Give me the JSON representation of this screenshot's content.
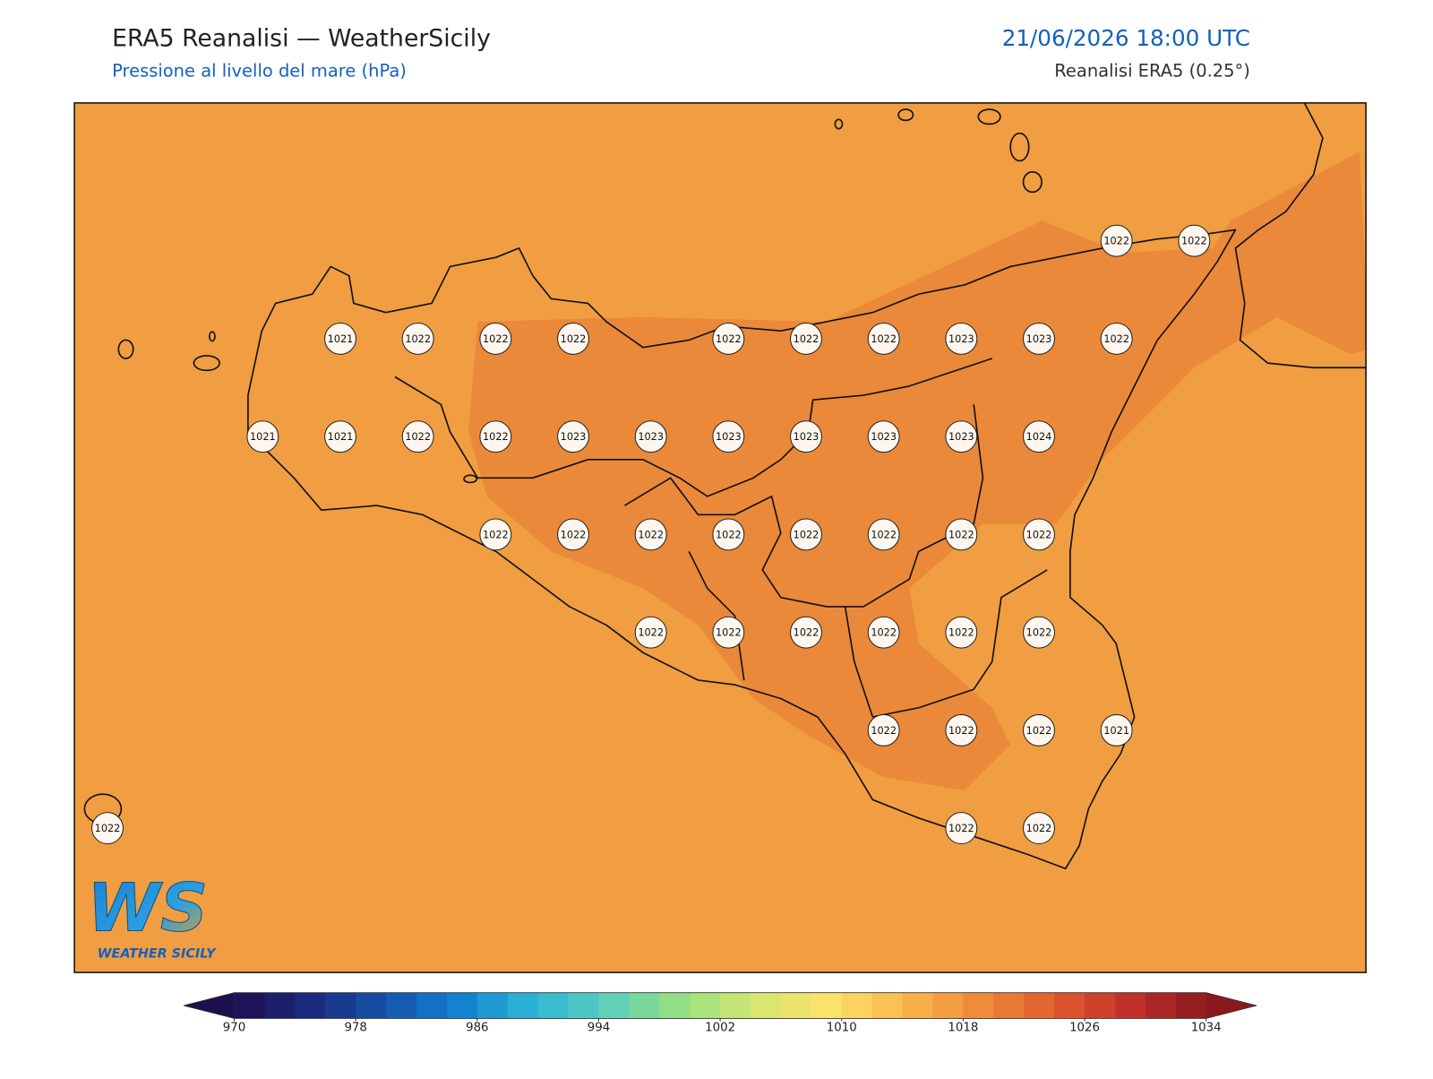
{
  "header": {
    "title": "ERA5 Reanalisi — WeatherSicily",
    "subtitle": "Pressione al livello del mare (hPa)",
    "datetime": "21/06/2026 18:00 UTC",
    "source": "Reanalisi ERA5 (0.25°)"
  },
  "map": {
    "pressure_grid": [
      [
        null,
        null,
        null,
        null,
        null,
        null,
        null,
        null,
        null,
        null,
        null,
        null,
        null,
        1022,
        1022
      ],
      [
        null,
        null,
        null,
        1021,
        1022,
        1022,
        1022,
        null,
        1022,
        1022,
        1022,
        1023,
        1023,
        1022,
        null
      ],
      [
        null,
        null,
        1021,
        1021,
        1022,
        1022,
        1023,
        1023,
        1023,
        1023,
        1023,
        1023,
        1024,
        null,
        null
      ],
      [
        null,
        null,
        null,
        null,
        null,
        1022,
        1022,
        1022,
        1022,
        1022,
        1022,
        1022,
        1022,
        null,
        null
      ],
      [
        null,
        null,
        null,
        null,
        null,
        null,
        null,
        1022,
        1022,
        1022,
        1022,
        1022,
        1022,
        null,
        null
      ],
      [
        null,
        null,
        null,
        null,
        null,
        null,
        null,
        null,
        null,
        null,
        1022,
        1022,
        1022,
        1021,
        null
      ],
      [
        1022,
        null,
        null,
        null,
        null,
        null,
        null,
        null,
        null,
        null,
        null,
        1022,
        1022,
        null,
        null
      ]
    ]
  },
  "colorbar": {
    "limits": [
      970,
      1034
    ],
    "step": 2,
    "ticks": [
      970,
      978,
      986,
      994,
      1002,
      1010,
      1018,
      1026,
      1034
    ],
    "colors": [
      "#1e0f4e",
      "#1b2a7c",
      "#1552a8",
      "#1281d0",
      "#2db5d5",
      "#5dd0bd",
      "#98e080",
      "#d6e670",
      "#fde36a",
      "#f8b64a",
      "#ee8a38",
      "#e05a2e",
      "#c0302a",
      "#8a1a1e"
    ]
  },
  "logo": {
    "mark": "WS",
    "name": "WEATHER SICILY"
  }
}
